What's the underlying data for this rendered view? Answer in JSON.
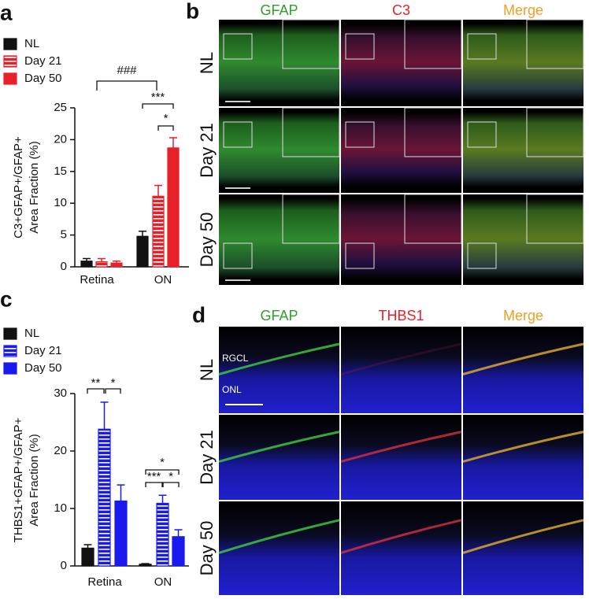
{
  "chart_data": [
    {
      "type": "bar",
      "panel_label": "a",
      "ylabel": [
        "C3+GFAP+/GFAP+",
        "Area Fraction (%)"
      ],
      "categories": [
        "Retina",
        "ON"
      ],
      "series": [
        {
          "name": "NL",
          "color": "#111111",
          "values": [
            0.9,
            4.8
          ],
          "errors": [
            0.4,
            0.8
          ]
        },
        {
          "name": "Day 21",
          "color": "#e8202a",
          "hatch": "horizontal",
          "values": [
            0.8,
            11.1
          ],
          "errors": [
            0.5,
            1.7
          ]
        },
        {
          "name": "Day 50",
          "color": "#e8202a",
          "values": [
            0.6,
            18.7
          ],
          "errors": [
            0.3,
            1.6
          ]
        }
      ],
      "ylim": [
        0,
        25
      ],
      "yticks": [
        0,
        5,
        10,
        15,
        20,
        25
      ],
      "annotations": [
        "###",
        "***",
        "*"
      ]
    },
    {
      "type": "bar",
      "panel_label": "c",
      "ylabel": [
        "THBS1+GFAP+/GFAP+",
        "Area Fraction (%)"
      ],
      "categories": [
        "Retina",
        "ON"
      ],
      "series": [
        {
          "name": "NL",
          "color": "#111111",
          "values": [
            3.1,
            0.3
          ],
          "errors": [
            0.6,
            0.1
          ]
        },
        {
          "name": "Day 21",
          "color": "#1a1aee",
          "hatch": "horizontal",
          "values": [
            23.8,
            10.9
          ],
          "errors": [
            4.7,
            1.4
          ]
        },
        {
          "name": "Day 50",
          "color": "#1a1aee",
          "values": [
            11.3,
            5.1
          ],
          "errors": [
            2.8,
            1.2
          ]
        }
      ],
      "ylim": [
        0,
        30
      ],
      "yticks": [
        0,
        10,
        20,
        30
      ],
      "annotations": [
        "**",
        "*",
        "*",
        "***",
        "*"
      ]
    }
  ],
  "panels": [
    {
      "panel_label": "b",
      "columns": [
        "GFAP",
        "C3",
        "Merge"
      ],
      "column_colors": [
        "#2e9e2e",
        "#e8202a",
        "#f0a020"
      ],
      "rows": [
        "NL",
        "Day 21",
        "Day 50"
      ]
    },
    {
      "panel_label": "d",
      "columns": [
        "GFAP",
        "THBS1",
        "Merge"
      ],
      "column_colors": [
        "#2e9e2e",
        "#e8202a",
        "#f0a020"
      ],
      "rows": [
        "NL",
        "Day 21",
        "Day 50"
      ],
      "layer_labels": [
        "RGCL",
        "ONL"
      ]
    }
  ]
}
